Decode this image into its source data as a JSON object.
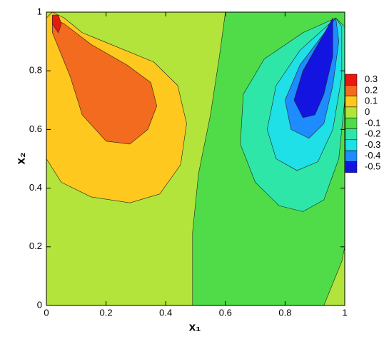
{
  "chart_data": {
    "type": "contour",
    "xlabel": "x₁",
    "ylabel": "x₂",
    "xlim": [
      0,
      1
    ],
    "ylim": [
      0,
      1
    ],
    "xticks": [
      0,
      0.2,
      0.4,
      0.6,
      0.8,
      1
    ],
    "yticks": [
      0,
      0.2,
      0.4,
      0.6,
      0.8,
      1
    ],
    "levels": [
      0.3,
      0.2,
      0.1,
      0,
      -0.1,
      -0.2,
      -0.3,
      -0.4,
      -0.5
    ],
    "colors": [
      "#e8190e",
      "#f26b1e",
      "#ffc81e",
      "#b2e43c",
      "#4fdc48",
      "#2ee6a8",
      "#1ee0e6",
      "#1e8cff",
      "#1414e0"
    ],
    "background_level": 0,
    "contours": [
      {
        "level": -0.1,
        "points": [
          [
            0.6,
            1
          ],
          [
            0.58,
            0.85
          ],
          [
            0.55,
            0.65
          ],
          [
            0.51,
            0.45
          ],
          [
            0.49,
            0.25
          ],
          [
            0.49,
            0
          ],
          [
            0.93,
            0
          ],
          [
            0.97,
            0.1
          ],
          [
            0.99,
            0.15
          ],
          [
            1,
            0.2
          ],
          [
            1,
            1
          ]
        ]
      },
      {
        "level": -0.2,
        "points": [
          [
            0.97,
            0.98
          ],
          [
            0.86,
            0.93
          ],
          [
            0.73,
            0.84
          ],
          [
            0.66,
            0.72
          ],
          [
            0.65,
            0.55
          ],
          [
            0.7,
            0.42
          ],
          [
            0.78,
            0.34
          ],
          [
            0.86,
            0.32
          ],
          [
            0.93,
            0.36
          ],
          [
            0.98,
            0.5
          ],
          [
            1,
            0.7
          ],
          [
            1,
            0.95
          ]
        ]
      },
      {
        "level": -0.3,
        "points": [
          [
            0.97,
            0.98
          ],
          [
            0.85,
            0.87
          ],
          [
            0.77,
            0.75
          ],
          [
            0.74,
            0.6
          ],
          [
            0.77,
            0.5
          ],
          [
            0.84,
            0.46
          ],
          [
            0.91,
            0.49
          ],
          [
            0.96,
            0.6
          ],
          [
            0.99,
            0.78
          ],
          [
            0.99,
            0.95
          ]
        ]
      },
      {
        "level": -0.4,
        "points": [
          [
            0.97,
            0.98
          ],
          [
            0.85,
            0.82
          ],
          [
            0.8,
            0.7
          ],
          [
            0.82,
            0.6
          ],
          [
            0.88,
            0.57
          ],
          [
            0.93,
            0.62
          ],
          [
            0.96,
            0.75
          ],
          [
            0.98,
            0.9
          ]
        ]
      },
      {
        "level": -0.5,
        "points": [
          [
            0.96,
            0.98
          ],
          [
            0.86,
            0.8
          ],
          [
            0.83,
            0.7
          ],
          [
            0.86,
            0.64
          ],
          [
            0.9,
            0.65
          ],
          [
            0.93,
            0.72
          ],
          [
            0.96,
            0.85
          ]
        ]
      },
      {
        "level": 0.1,
        "points": [
          [
            0.02,
            1
          ],
          [
            0,
            0.98
          ],
          [
            0,
            0.5
          ],
          [
            0.05,
            0.42
          ],
          [
            0.15,
            0.37
          ],
          [
            0.28,
            0.35
          ],
          [
            0.38,
            0.38
          ],
          [
            0.45,
            0.48
          ],
          [
            0.47,
            0.62
          ],
          [
            0.44,
            0.75
          ],
          [
            0.36,
            0.83
          ],
          [
            0.24,
            0.88
          ],
          [
            0.12,
            0.93
          ],
          [
            0.06,
            0.98
          ]
        ]
      },
      {
        "level": 0.2,
        "points": [
          [
            0.02,
            0.98
          ],
          [
            0.02,
            0.93
          ],
          [
            0.08,
            0.78
          ],
          [
            0.12,
            0.65
          ],
          [
            0.2,
            0.56
          ],
          [
            0.28,
            0.55
          ],
          [
            0.34,
            0.6
          ],
          [
            0.37,
            0.68
          ],
          [
            0.35,
            0.76
          ],
          [
            0.27,
            0.82
          ],
          [
            0.15,
            0.89
          ],
          [
            0.06,
            0.96
          ]
        ]
      },
      {
        "level": 0.3,
        "points": [
          [
            0.02,
            0.99
          ],
          [
            0.02,
            0.96
          ],
          [
            0.04,
            0.93
          ],
          [
            0.05,
            0.96
          ],
          [
            0.04,
            0.99
          ]
        ]
      }
    ]
  }
}
